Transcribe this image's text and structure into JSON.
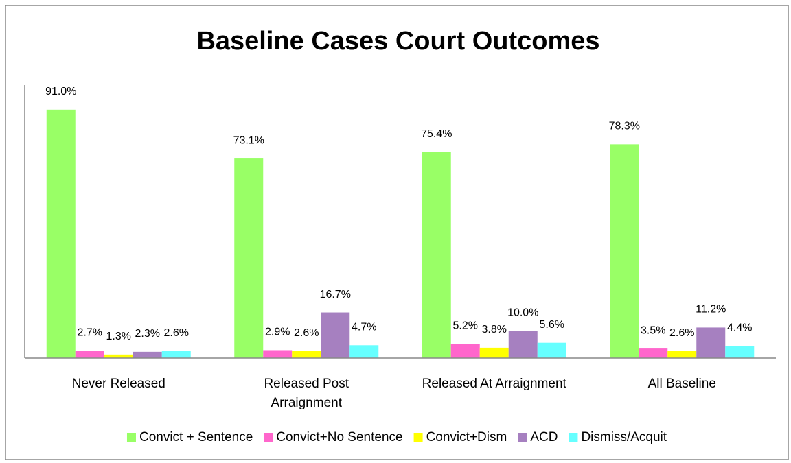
{
  "chart_data": {
    "type": "bar",
    "title": "Baseline Cases Court Outcomes",
    "categories": [
      "Never Released",
      "Released Post Arraignment",
      "Released At Arraignment",
      "All Baseline"
    ],
    "series": [
      {
        "name": "Convict + Sentence",
        "color": "#99ff66",
        "values": [
          91.0,
          73.1,
          75.4,
          78.3
        ],
        "value_labels": [
          "91.0%",
          "73.1%",
          "75.4%",
          "78.3%"
        ]
      },
      {
        "name": "Convict+No Sentence",
        "color": "#ff66cc",
        "values": [
          2.7,
          2.9,
          5.2,
          3.5
        ],
        "value_labels": [
          "2.7%",
          "2.9%",
          "5.2%",
          "3.5%"
        ]
      },
      {
        "name": "Convict+Dism",
        "color": "#ffff00",
        "values": [
          1.3,
          2.6,
          3.8,
          2.6
        ],
        "value_labels": [
          "1.3%",
          "2.6%",
          "3.8%",
          "2.6%"
        ]
      },
      {
        "name": "ACD",
        "color": "#a680c0",
        "values": [
          2.3,
          16.7,
          10.0,
          11.2
        ],
        "value_labels": [
          "2.3%",
          "16.7%",
          "10.0%",
          "11.2%"
        ]
      },
      {
        "name": "Dismiss/Acquit",
        "color": "#66ffff",
        "values": [
          2.6,
          4.7,
          5.6,
          4.4
        ],
        "value_labels": [
          "2.6%",
          "4.7%",
          "5.6%",
          "4.4%"
        ]
      }
    ],
    "ylim": [
      0,
      100
    ],
    "legend": "bottom"
  }
}
